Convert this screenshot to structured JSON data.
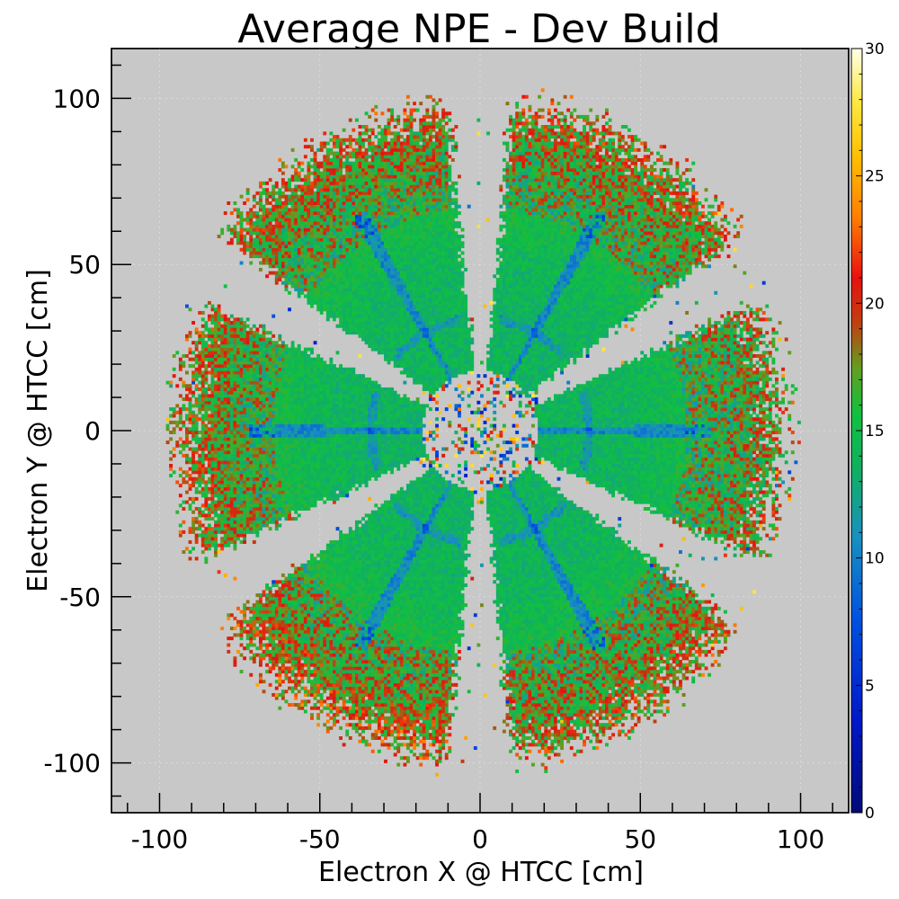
{
  "chart_data": {
    "type": "heatmap",
    "title": "Average NPE - Dev Build",
    "xlabel": "Electron X @ HTCC [cm]",
    "ylabel": "Electron Y @ HTCC [cm]",
    "xlim": [
      -115,
      115
    ],
    "ylim": [
      -115,
      115
    ],
    "xticks": [
      -100,
      -50,
      0,
      50,
      100
    ],
    "yticks": [
      -100,
      -50,
      0,
      50,
      100
    ],
    "xtick_labels": [
      "-100",
      "-50",
      "0",
      "50",
      "100"
    ],
    "ytick_labels": [
      "-100",
      "-50",
      "0",
      "50",
      "100"
    ],
    "colorbar": {
      "range": [
        0,
        30
      ],
      "ticks": [
        0,
        5,
        10,
        15,
        20,
        25,
        30
      ],
      "tick_labels": [
        "0",
        "5",
        "10",
        "15",
        "20",
        "25",
        "30"
      ],
      "palette": "rainbow"
    },
    "background_color": "#c8c8c8",
    "grid": true,
    "sectors": [
      {
        "center_angle_deg": 120,
        "r_inner_cm": 18,
        "r_outer_cm": 100,
        "half_width_deg": 24,
        "inner_npe": 14,
        "outer_npe": 19
      },
      {
        "center_angle_deg": 60,
        "r_inner_cm": 18,
        "r_outer_cm": 100,
        "half_width_deg": 24,
        "inner_npe": 14,
        "outer_npe": 19
      },
      {
        "center_angle_deg": 0,
        "r_inner_cm": 18,
        "r_outer_cm": 95,
        "half_width_deg": 24,
        "inner_npe": 14,
        "outer_npe": 18
      },
      {
        "center_angle_deg": 300,
        "r_inner_cm": 18,
        "r_outer_cm": 100,
        "half_width_deg": 24,
        "inner_npe": 14,
        "outer_npe": 19
      },
      {
        "center_angle_deg": 240,
        "r_inner_cm": 18,
        "r_outer_cm": 100,
        "half_width_deg": 24,
        "inner_npe": 14,
        "outer_npe": 20
      },
      {
        "center_angle_deg": 180,
        "r_inner_cm": 18,
        "r_outer_cm": 95,
        "half_width_deg": 24,
        "inner_npe": 14,
        "outer_npe": 19
      }
    ]
  }
}
